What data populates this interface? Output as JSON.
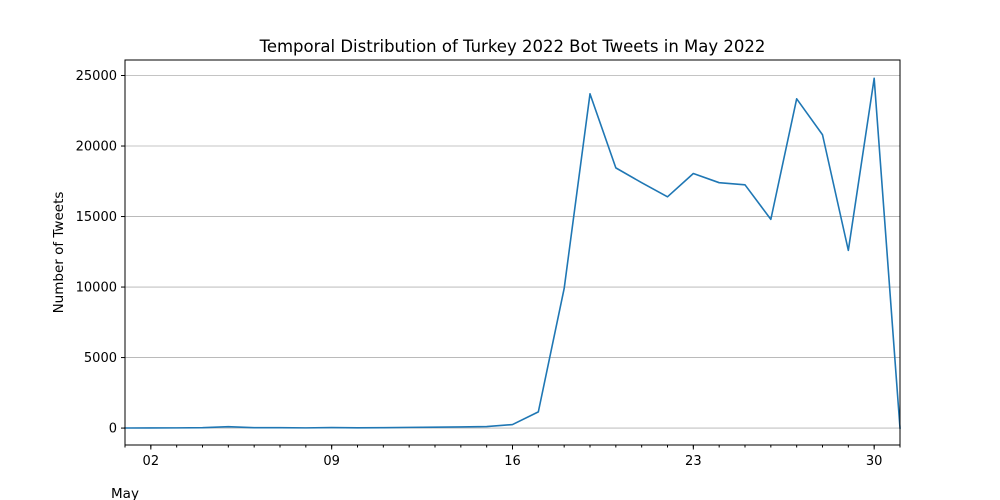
{
  "chart_data": {
    "type": "line",
    "title": "Temporal Distribution of Turkey 2022 Bot Tweets in May 2022",
    "xlabel": "May",
    "ylabel": "Number of Tweets",
    "x": [
      "2022-05-01",
      "2022-05-02",
      "2022-05-03",
      "2022-05-04",
      "2022-05-05",
      "2022-05-06",
      "2022-05-07",
      "2022-05-08",
      "2022-05-09",
      "2022-05-10",
      "2022-05-11",
      "2022-05-12",
      "2022-05-13",
      "2022-05-14",
      "2022-05-15",
      "2022-05-16",
      "2022-05-17",
      "2022-05-18",
      "2022-05-19",
      "2022-05-20",
      "2022-05-21",
      "2022-05-22",
      "2022-05-23",
      "2022-05-24",
      "2022-05-25",
      "2022-05-26",
      "2022-05-27",
      "2022-05-28",
      "2022-05-29",
      "2022-05-30",
      "2022-05-31"
    ],
    "series": [
      {
        "values": [
          5,
          10,
          15,
          25,
          100,
          30,
          25,
          15,
          35,
          20,
          30,
          50,
          60,
          80,
          110,
          250,
          1150,
          9900,
          23700,
          18450,
          17400,
          16400,
          18050,
          17400,
          17250,
          14800,
          23350,
          20800,
          12600,
          24800,
          0
        ]
      }
    ],
    "xlim": [
      "2022-05-01",
      "2022-05-31"
    ],
    "ylim": [
      -1200,
      26100
    ],
    "x_ticks": [
      "02",
      "09",
      "16",
      "23",
      "30"
    ],
    "x_tick_dates": [
      "2022-05-02",
      "2022-05-09",
      "2022-05-16",
      "2022-05-23",
      "2022-05-30"
    ],
    "y_ticks": [
      0,
      5000,
      10000,
      15000,
      20000,
      25000
    ],
    "grid": "horizontal",
    "line_color": "#1f77b4"
  }
}
